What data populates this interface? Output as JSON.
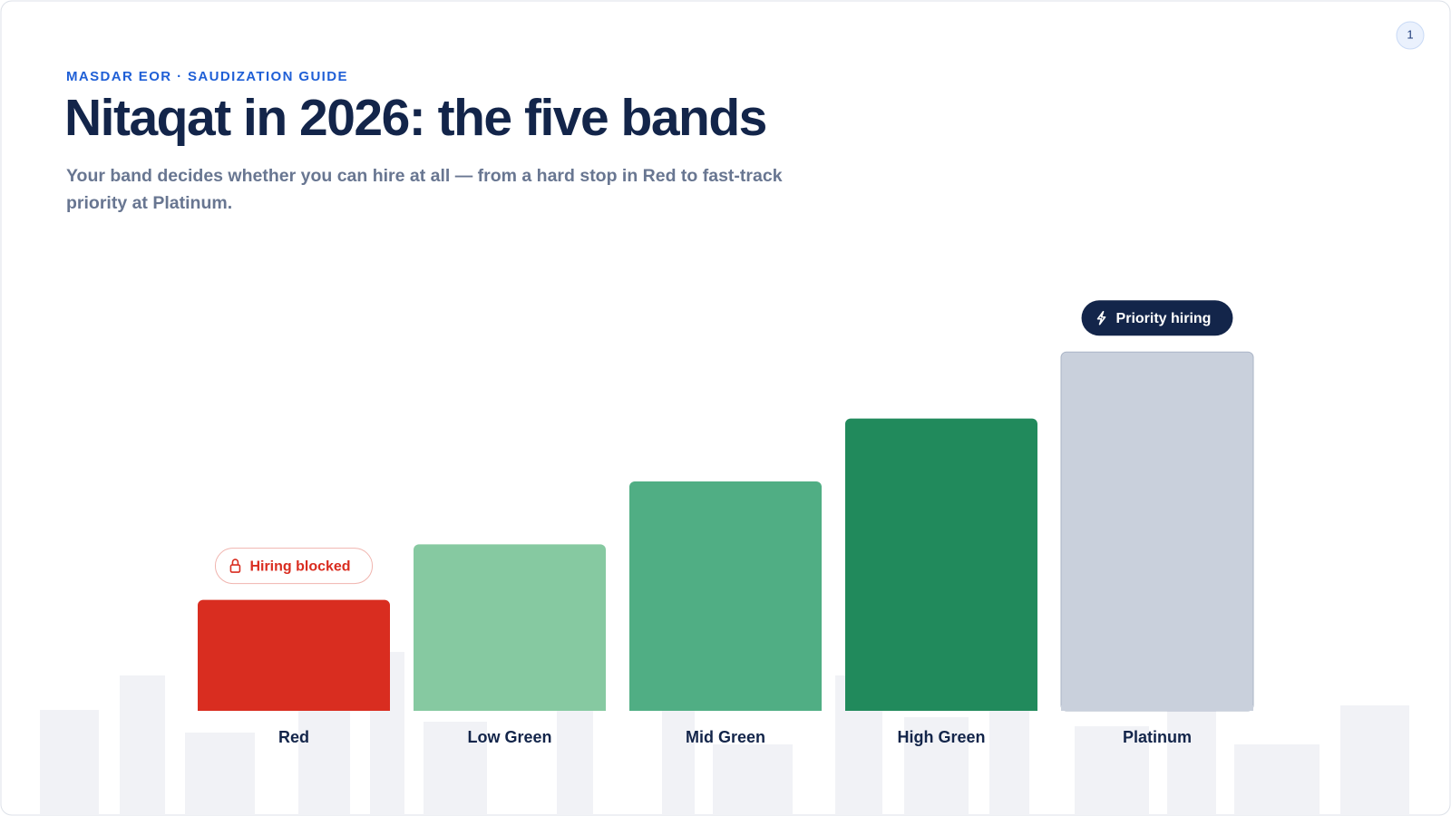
{
  "header": {
    "eyebrow": "MASDAR EOR · SAUDIZATION GUIDE",
    "title": "Nitaqat in 2026: the five bands",
    "subtitle_lines": [
      "Your band decides whether you can hire at all — from a hard stop in Red to fast-track",
      "priority at Platinum."
    ]
  },
  "page_number": 1,
  "chart_data": {
    "type": "bar",
    "categories": [
      "Red",
      "Low Green",
      "Mid Green",
      "High Green",
      "Platinum"
    ],
    "values": [
      120,
      180,
      248,
      316,
      388
    ],
    "colors": [
      "#d92d20",
      "#86c9a1",
      "#50ae84",
      "#218a5c",
      "#c9d0dc"
    ],
    "ylim": [
      0,
      400
    ],
    "callouts": [
      {
        "category": "Red",
        "text": "Hiring blocked",
        "color": "#d92d20",
        "filled": false
      },
      {
        "category": "Platinum",
        "text": "Priority hiring",
        "color": "#13254a",
        "filled": true
      }
    ]
  }
}
